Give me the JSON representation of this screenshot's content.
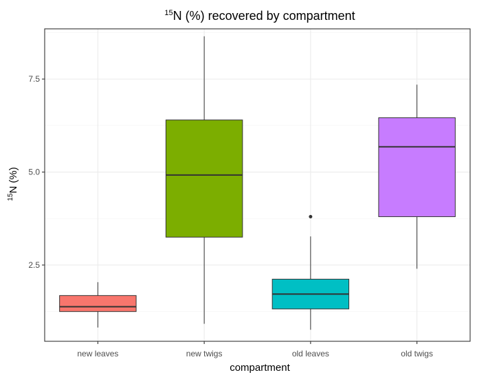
{
  "chart_data": {
    "type": "boxplot",
    "title_prefix": "15",
    "title_main": "N (%) recovered by compartment",
    "xlabel": "compartment",
    "ylabel_prefix": "15",
    "ylabel_main": "N (%)",
    "ylim": [
      0.45,
      8.85
    ],
    "y_ticks": [
      2.5,
      5.0,
      7.5
    ],
    "y_tick_labels": [
      "2.5",
      "5.0",
      "7.5"
    ],
    "grid": true,
    "categories": [
      "new leaves",
      "new twigs",
      "old leaves",
      "old twigs"
    ],
    "boxes": [
      {
        "category": "new leaves",
        "color": "#F8766D",
        "min": 0.82,
        "q1": 1.25,
        "median": 1.38,
        "q3": 1.68,
        "max": 2.04,
        "outliers": []
      },
      {
        "category": "new twigs",
        "color": "#7CAE00",
        "min": 0.92,
        "q1": 3.25,
        "median": 4.92,
        "q3": 6.4,
        "max": 8.65,
        "outliers": []
      },
      {
        "category": "old leaves",
        "color": "#00BFC4",
        "min": 0.76,
        "q1": 1.32,
        "median": 1.72,
        "q3": 2.12,
        "max": 3.27,
        "outliers": [
          3.8
        ]
      },
      {
        "category": "old twigs",
        "color": "#C77CFF",
        "min": 2.4,
        "q1": 3.8,
        "median": 5.68,
        "q3": 6.46,
        "max": 7.35,
        "outliers": []
      }
    ]
  }
}
